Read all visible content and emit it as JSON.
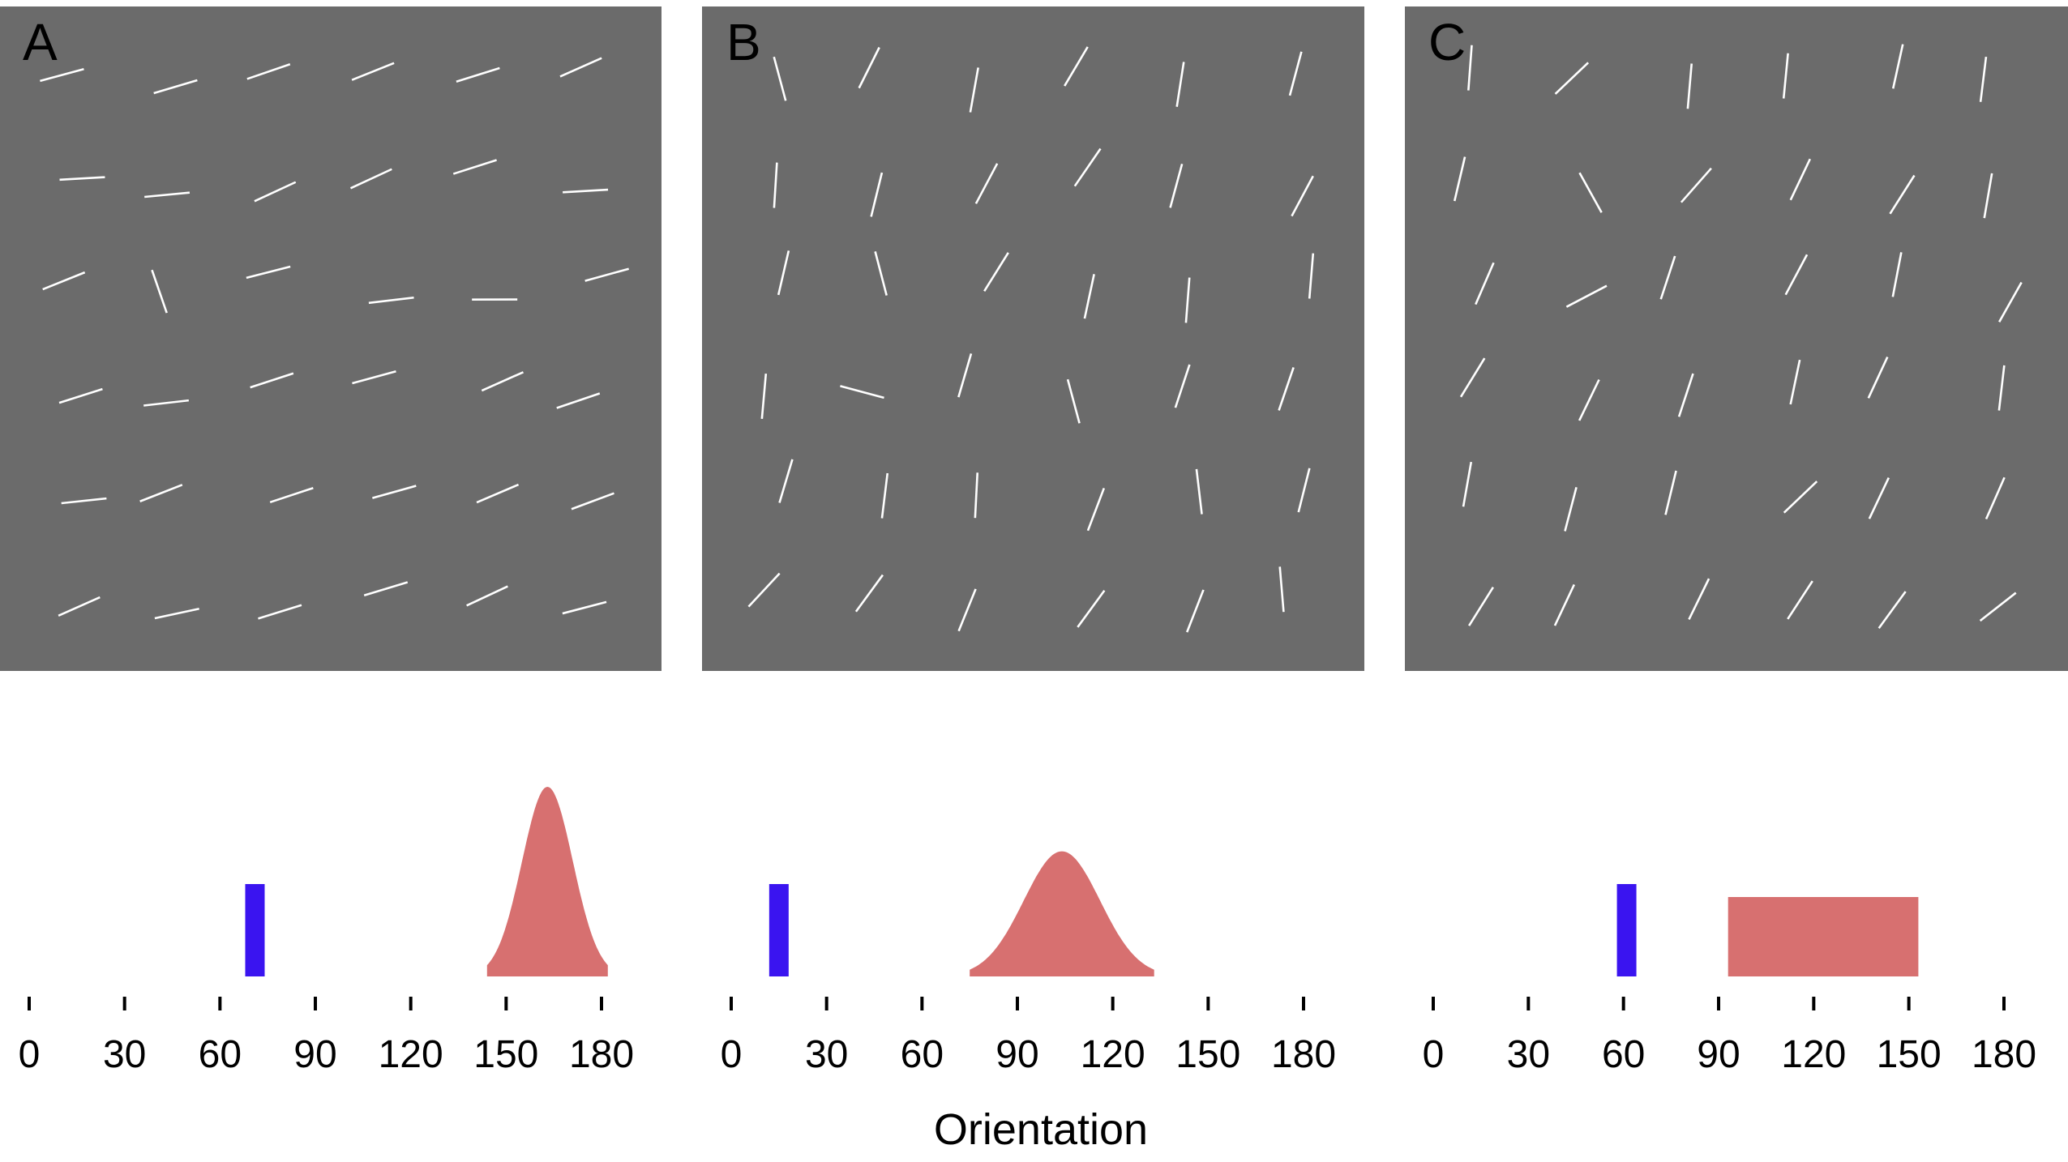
{
  "figure": {
    "xlabel": "Orientation",
    "tick_values": [
      0,
      30,
      60,
      90,
      120,
      150,
      180
    ],
    "colors": {
      "panel_background": "#6b6b6b",
      "stimulus_line": "#ffffff",
      "target_bar": "#3a14f0",
      "distractor_distribution": "#d77070",
      "axis": "#000000"
    },
    "panels": [
      {
        "letter": "A",
        "target_orientation": 71,
        "distribution": {
          "shape": "gaussian",
          "mean": 163,
          "sd": 8,
          "range": [
            144,
            182
          ]
        }
      },
      {
        "letter": "B",
        "target_orientation": 15,
        "distribution": {
          "shape": "gaussian",
          "mean": 104,
          "sd": 12,
          "range": [
            75,
            133
          ]
        }
      },
      {
        "letter": "C",
        "target_orientation": 61,
        "distribution": {
          "shape": "uniform",
          "range": [
            93,
            153
          ]
        }
      }
    ]
  }
}
